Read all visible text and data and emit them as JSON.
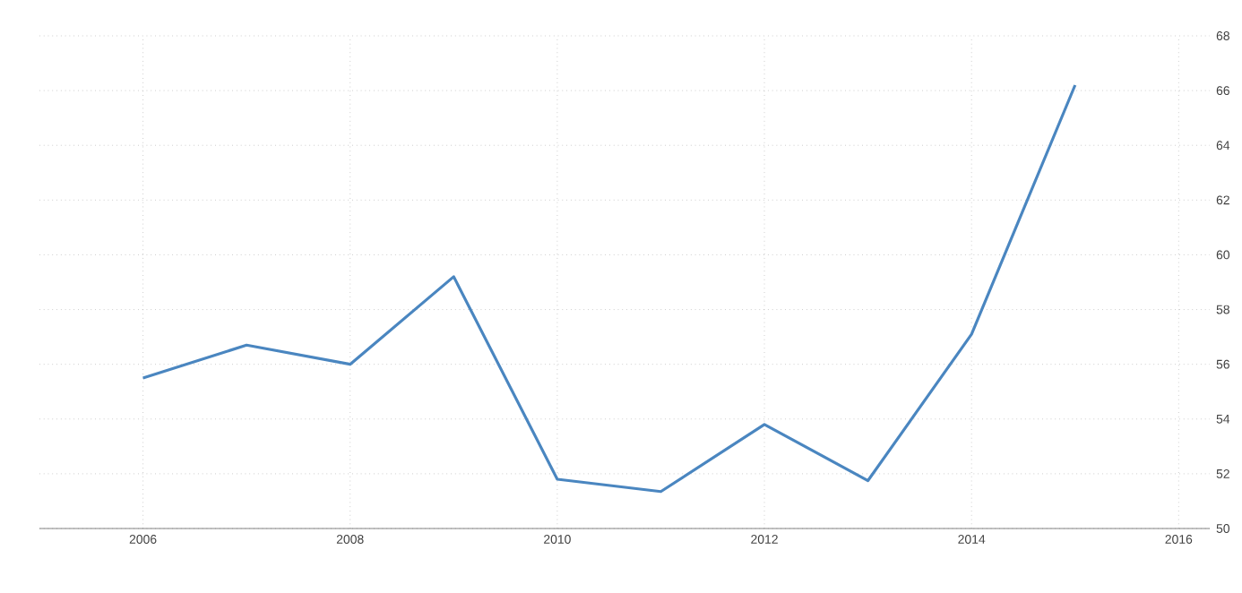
{
  "chart_data": {
    "type": "line",
    "x": [
      2006,
      2007,
      2008,
      2009,
      2010,
      2011,
      2012,
      2013,
      2014,
      2015
    ],
    "series": [
      {
        "color": "#4a86c0",
        "values": [
          55.5,
          56.7,
          56.0,
          59.2,
          51.8,
          51.35,
          53.8,
          51.75,
          57.1,
          66.2
        ]
      }
    ],
    "xlim": [
      2005,
      2016.3
    ],
    "ylim": [
      50,
      68
    ],
    "xticks": [
      2006,
      2008,
      2010,
      2012,
      2014,
      2016
    ],
    "yticks": [
      50,
      52,
      54,
      56,
      58,
      60,
      62,
      64,
      66,
      68
    ],
    "grid": true,
    "marker": "none",
    "line_style": "solid"
  }
}
